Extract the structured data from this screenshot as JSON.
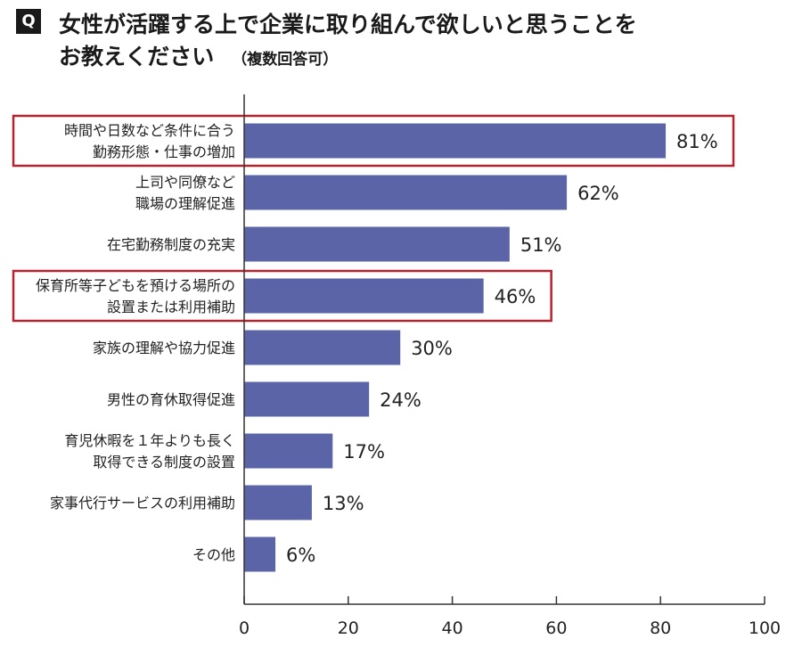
{
  "header": {
    "badge": "Q",
    "title_line1": "女性が活躍する上で企業に取り組んで欲しいと思うことを",
    "title_line2": "お教えください",
    "title_note": "（複数回答可）"
  },
  "colors": {
    "bar": "#5a64a6",
    "highlight": "#b5232f",
    "axis": "#333333"
  },
  "chart_data": {
    "type": "bar",
    "orientation": "horizontal",
    "categories": [
      [
        "時間や日数など条件に合う",
        "勤務形態・仕事の増加"
      ],
      [
        "上司や同僚など",
        "職場の理解促進"
      ],
      [
        "在宅勤務制度の充実"
      ],
      [
        "保育所等子どもを預ける場所の",
        "設置または利用補助"
      ],
      [
        "家族の理解や協力促進"
      ],
      [
        "男性の育休取得促進"
      ],
      [
        "育児休暇を１年よりも長く",
        "取得できる制度の設置"
      ],
      [
        "家事代行サービスの利用補助"
      ],
      [
        "その他"
      ]
    ],
    "values": [
      81,
      62,
      51,
      46,
      30,
      24,
      17,
      13,
      6
    ],
    "value_labels": [
      "81%",
      "62%",
      "51%",
      "46%",
      "30%",
      "24%",
      "17%",
      "13%",
      "6%"
    ],
    "highlighted": [
      0,
      3
    ],
    "xlim": [
      0,
      100
    ],
    "xticks": [
      0,
      20,
      40,
      60,
      80,
      100
    ],
    "grid": false
  }
}
